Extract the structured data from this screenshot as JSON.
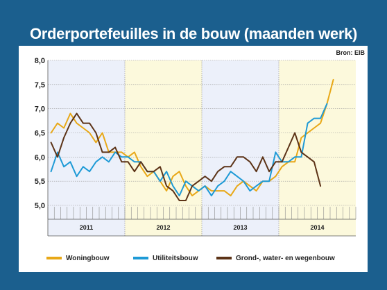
{
  "title": "Orderportefeuilles in de bouw (maanden werk)",
  "source": "Bron: EIB",
  "colors": {
    "background": "#1b5f8e",
    "year_band_a": "#ecf0fa",
    "year_band_b": "#fcf9dc",
    "woningbouw": "#e8a817",
    "utiliteitsbouw": "#1e9ad6",
    "gww": "#5c3317"
  },
  "chart_data": {
    "type": "line",
    "title": "Orderportefeuilles in de bouw (maanden werk)",
    "xlabel": "",
    "ylabel": "",
    "ylim": [
      5.0,
      8.0
    ],
    "yticks": [
      "5,0",
      "5,5",
      "6,0",
      "6,5",
      "7,0",
      "7,5",
      "8,0"
    ],
    "grid": true,
    "legend_position": "bottom",
    "x_axis": "maand (0 = januari 2011 ... 47 = december 2014)",
    "x_groups": [
      {
        "label": "2011",
        "start": 0,
        "end": 11
      },
      {
        "label": "2012",
        "start": 12,
        "end": 23
      },
      {
        "label": "2013",
        "start": 24,
        "end": 35
      },
      {
        "label": "2014",
        "start": 36,
        "end": 47
      }
    ],
    "series": [
      {
        "name": "Woningbouw",
        "color": "#e8a817",
        "points": [
          [
            0,
            6.5
          ],
          [
            1,
            6.7
          ],
          [
            2,
            6.6
          ],
          [
            3,
            6.9
          ],
          [
            4,
            6.7
          ],
          [
            5,
            6.6
          ],
          [
            6,
            6.5
          ],
          [
            7,
            6.3
          ],
          [
            8,
            6.5
          ],
          [
            9,
            6.1
          ],
          [
            10,
            6.1
          ],
          [
            11,
            6.1
          ],
          [
            12,
            6.0
          ],
          [
            13,
            6.1
          ],
          [
            14,
            5.8
          ],
          [
            15,
            5.6
          ],
          [
            16,
            5.7
          ],
          [
            17,
            5.5
          ],
          [
            18,
            5.3
          ],
          [
            19,
            5.6
          ],
          [
            20,
            5.7
          ],
          [
            21,
            5.4
          ],
          [
            22,
            5.2
          ],
          [
            23,
            5.3
          ],
          [
            24,
            5.4
          ],
          [
            25,
            5.3
          ],
          [
            26,
            5.3
          ],
          [
            27,
            5.3
          ],
          [
            28,
            5.2
          ],
          [
            29,
            5.4
          ],
          [
            30,
            5.5
          ],
          [
            31,
            5.4
          ],
          [
            32,
            5.3
          ],
          [
            33,
            5.5
          ],
          [
            34,
            5.5
          ],
          [
            35,
            5.6
          ],
          [
            36,
            5.8
          ],
          [
            37,
            5.9
          ],
          [
            38,
            5.9
          ],
          [
            39,
            6.4
          ],
          [
            40,
            6.5
          ],
          [
            41,
            6.6
          ],
          [
            42,
            6.7
          ],
          [
            43,
            7.1
          ],
          [
            44,
            7.6
          ]
        ]
      },
      {
        "name": "Utiliteitsbouw",
        "color": "#1e9ad6",
        "points": [
          [
            0,
            5.7
          ],
          [
            1,
            6.1
          ],
          [
            2,
            5.8
          ],
          [
            3,
            5.9
          ],
          [
            4,
            5.6
          ],
          [
            5,
            5.8
          ],
          [
            6,
            5.7
          ],
          [
            7,
            5.9
          ],
          [
            8,
            6.0
          ],
          [
            9,
            5.9
          ],
          [
            10,
            6.1
          ],
          [
            11,
            6.0
          ],
          [
            12,
            6.0
          ],
          [
            13,
            5.9
          ],
          [
            14,
            5.9
          ],
          [
            15,
            5.7
          ],
          [
            16,
            5.7
          ],
          [
            17,
            5.5
          ],
          [
            18,
            5.7
          ],
          [
            19,
            5.4
          ],
          [
            20,
            5.2
          ],
          [
            21,
            5.5
          ],
          [
            22,
            5.4
          ],
          [
            23,
            5.3
          ],
          [
            24,
            5.4
          ],
          [
            25,
            5.2
          ],
          [
            26,
            5.4
          ],
          [
            27,
            5.5
          ],
          [
            28,
            5.7
          ],
          [
            29,
            5.6
          ],
          [
            30,
            5.5
          ],
          [
            31,
            5.3
          ],
          [
            32,
            5.4
          ],
          [
            33,
            5.5
          ],
          [
            34,
            5.5
          ],
          [
            35,
            6.1
          ],
          [
            36,
            5.9
          ],
          [
            37,
            5.9
          ],
          [
            38,
            6.0
          ],
          [
            39,
            6.0
          ],
          [
            40,
            6.7
          ],
          [
            41,
            6.8
          ],
          [
            42,
            6.8
          ],
          [
            43,
            7.1
          ]
        ]
      },
      {
        "name": "Grond-, water- en wegenbouw",
        "color": "#5c3317",
        "points": [
          [
            0,
            6.3
          ],
          [
            1,
            6.0
          ],
          [
            2,
            6.4
          ],
          [
            3,
            6.7
          ],
          [
            4,
            6.9
          ],
          [
            5,
            6.7
          ],
          [
            6,
            6.7
          ],
          [
            7,
            6.5
          ],
          [
            8,
            6.1
          ],
          [
            9,
            6.1
          ],
          [
            10,
            6.2
          ],
          [
            11,
            5.9
          ],
          [
            12,
            5.9
          ],
          [
            13,
            5.7
          ],
          [
            14,
            5.9
          ],
          [
            15,
            5.7
          ],
          [
            16,
            5.7
          ],
          [
            17,
            5.8
          ],
          [
            18,
            5.4
          ],
          [
            19,
            5.3
          ],
          [
            20,
            5.1
          ],
          [
            21,
            5.1
          ],
          [
            22,
            5.4
          ],
          [
            23,
            5.5
          ],
          [
            24,
            5.6
          ],
          [
            25,
            5.5
          ],
          [
            26,
            5.7
          ],
          [
            27,
            5.8
          ],
          [
            28,
            5.8
          ],
          [
            29,
            6.0
          ],
          [
            30,
            6.0
          ],
          [
            31,
            5.9
          ],
          [
            32,
            5.7
          ],
          [
            33,
            6.0
          ],
          [
            34,
            5.7
          ],
          [
            35,
            5.9
          ],
          [
            36,
            5.9
          ],
          [
            37,
            6.2
          ],
          [
            38,
            6.5
          ],
          [
            39,
            6.1
          ],
          [
            40,
            6.0
          ],
          [
            41,
            5.9
          ],
          [
            42,
            5.4
          ]
        ]
      }
    ]
  }
}
